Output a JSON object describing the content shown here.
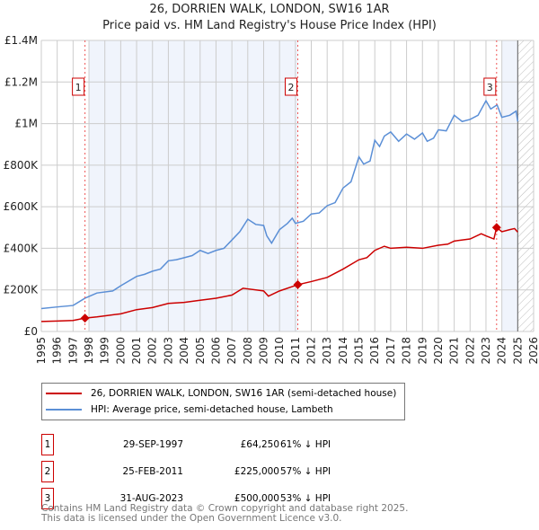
{
  "chart_data": {
    "type": "line",
    "title": "26, DORRIEN WALK, LONDON, SW16 1AR",
    "subtitle": "Price paid vs. HM Land Registry's House Price Index (HPI)",
    "xlim": [
      1995,
      2026
    ],
    "ylim": [
      0,
      1400000
    ],
    "x_ticks": [
      "1995",
      "1996",
      "1997",
      "1998",
      "1999",
      "2000",
      "2001",
      "2002",
      "2003",
      "2004",
      "2005",
      "2006",
      "2007",
      "2008",
      "2009",
      "2010",
      "2011",
      "2012",
      "2013",
      "2014",
      "2015",
      "2016",
      "2017",
      "2018",
      "2019",
      "2020",
      "2021",
      "2022",
      "2023",
      "2024",
      "2025",
      "2026"
    ],
    "y_ticks": [
      {
        "v": 0,
        "label": "£0"
      },
      {
        "v": 200000,
        "label": "£200K"
      },
      {
        "v": 400000,
        "label": "£400K"
      },
      {
        "v": 600000,
        "label": "£600K"
      },
      {
        "v": 800000,
        "label": "£800K"
      },
      {
        "v": 1000000,
        "label": "£1M"
      },
      {
        "v": 1200000,
        "label": "£1.2M"
      },
      {
        "v": 1400000,
        "label": "£1.4M"
      }
    ],
    "grid": true,
    "series": [
      {
        "name": "26, DORRIEN WALK, LONDON, SW16 1AR (semi-detached house)",
        "color": "#cc0000",
        "x": [
          1995,
          1996,
          1997,
          1997.75,
          1998.5,
          1999,
          2000,
          2001,
          2002,
          2003,
          2004,
          2005,
          2006,
          2007,
          2007.7,
          2008,
          2009,
          2009.3,
          2010,
          2011.15,
          2012,
          2013,
          2014,
          2015,
          2015.5,
          2016,
          2016.6,
          2017,
          2018,
          2019,
          2020,
          2020.6,
          2021,
          2022,
          2022.7,
          2023,
          2023.5,
          2023.67,
          2024,
          2024.5,
          2024.8,
          2025
        ],
        "y": [
          48000,
          50000,
          53000,
          64250,
          70000,
          75000,
          85000,
          105000,
          115000,
          135000,
          140000,
          150000,
          160000,
          175000,
          208000,
          205000,
          195000,
          170000,
          195000,
          225000,
          240000,
          260000,
          300000,
          345000,
          355000,
          390000,
          410000,
          400000,
          405000,
          400000,
          415000,
          420000,
          435000,
          445000,
          470000,
          460000,
          445000,
          500000,
          480000,
          490000,
          495000,
          478000
        ]
      },
      {
        "name": "HPI: Average price, semi-detached house, Lambeth",
        "color": "#5b8fd6",
        "x": [
          1995,
          1996,
          1997,
          1997.75,
          1998.5,
          1999.5,
          2000,
          2001,
          2001.5,
          2002,
          2002.5,
          2003,
          2003.5,
          2004,
          2004.5,
          2005,
          2005.5,
          2006,
          2006.5,
          2007,
          2007.5,
          2008,
          2008.5,
          2009,
          2009.2,
          2009.5,
          2010,
          2010.5,
          2010.8,
          2011,
          2011.5,
          2012,
          2012.5,
          2013,
          2013.5,
          2014,
          2014.5,
          2015,
          2015.3,
          2015.7,
          2016,
          2016.3,
          2016.6,
          2017,
          2017.5,
          2018,
          2018.5,
          2019,
          2019.3,
          2019.7,
          2020,
          2020.5,
          2021,
          2021.5,
          2022,
          2022.5,
          2023,
          2023.3,
          2023.7,
          2024,
          2024.5,
          2024.9,
          2025
        ],
        "y": [
          110000,
          118000,
          125000,
          160000,
          185000,
          195000,
          220000,
          265000,
          275000,
          290000,
          300000,
          340000,
          345000,
          355000,
          365000,
          390000,
          375000,
          390000,
          400000,
          440000,
          480000,
          540000,
          515000,
          510000,
          460000,
          425000,
          490000,
          520000,
          545000,
          520000,
          530000,
          565000,
          570000,
          605000,
          620000,
          690000,
          720000,
          840000,
          805000,
          820000,
          920000,
          890000,
          940000,
          960000,
          915000,
          950000,
          925000,
          955000,
          915000,
          930000,
          970000,
          965000,
          1040000,
          1010000,
          1020000,
          1040000,
          1110000,
          1070000,
          1090000,
          1030000,
          1040000,
          1060000,
          1010000
        ]
      }
    ],
    "sales": [
      {
        "id": "1",
        "x": 1997.75,
        "y": 64250,
        "date": "29-SEP-1997",
        "price": "£64,250",
        "hpi": "61% ↓ HPI"
      },
      {
        "id": "2",
        "x": 2011.15,
        "y": 225000,
        "date": "25-FEB-2011",
        "price": "£225,000",
        "hpi": "57% ↓ HPI"
      },
      {
        "id": "3",
        "x": 2023.67,
        "y": 500000,
        "date": "31-AUG-2023",
        "price": "£500,000",
        "hpi": "53% ↓ HPI"
      }
    ]
  },
  "footer": {
    "line1": "Contains HM Land Registry data © Crown copyright and database right 2025.",
    "line2": "This data is licensed under the Open Government Licence v3.0."
  }
}
